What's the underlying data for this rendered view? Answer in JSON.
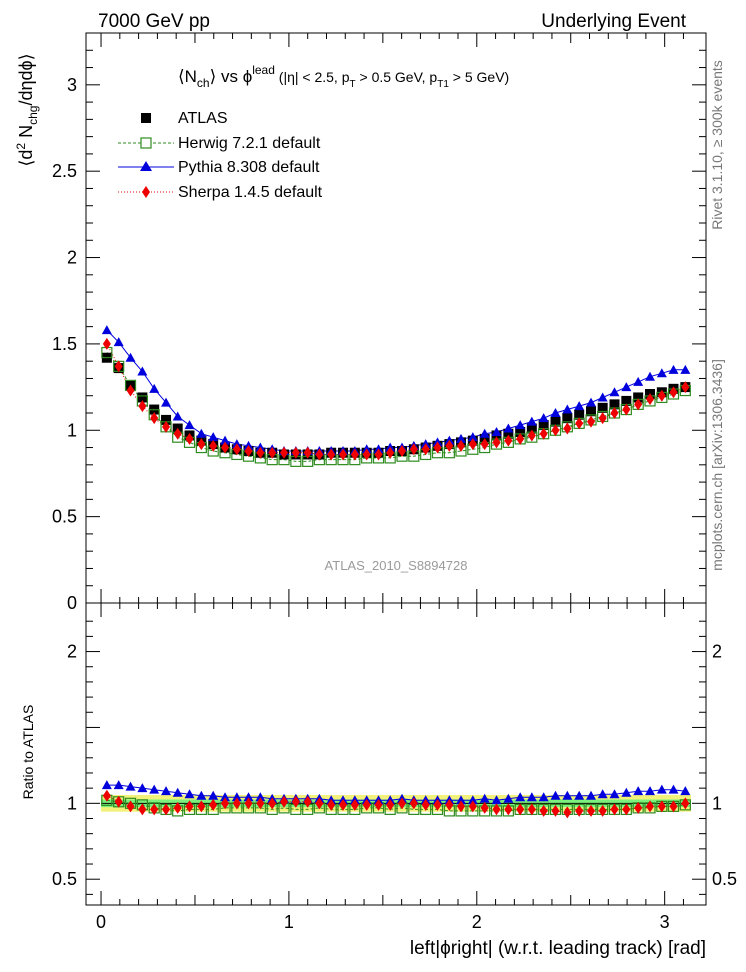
{
  "header": {
    "left": "7000 GeV pp",
    "right": "Underlying Event"
  },
  "side_labels": {
    "top": "Rivet 3.1.10, ≥ 300k events",
    "bottom": "mcplots.cern.ch [arXiv:1306.3436]"
  },
  "watermark": "ATLAS_2010_S8894728",
  "colors": {
    "atlas": "#000000",
    "herwig": "#2e8b1f",
    "pythia": "#0000dd",
    "sherpa": "#ee0000",
    "band_inner": "#7cf07c",
    "band_outer": "#f2f27a"
  },
  "chart_data": [
    {
      "type": "scatter",
      "title_parts": {
        "a": "⟨N",
        "a_sub": "ch",
        "b": "⟩ vs ϕ",
        "b_sup": "lead",
        "c": " (|η| < 2.5, p",
        "c_sub": "T",
        "d": " > 0.5 GeV, p",
        "d_sub": "T1",
        "e": " > 5 GeV)"
      },
      "ylabel_parts": {
        "a": "⟨d",
        "a_sup": "2",
        "b": " N",
        "b_sub": "chg",
        "c": "/dηdϕ⟩"
      },
      "xlim": [
        -0.08,
        3.22
      ],
      "ylim": [
        0,
        3.3
      ],
      "yticks": [
        "0",
        "0.5",
        "1",
        "1.5",
        "2",
        "2.5",
        "3"
      ],
      "legend_position": "top-left",
      "x": [
        0.031,
        0.094,
        0.157,
        0.22,
        0.283,
        0.346,
        0.408,
        0.471,
        0.534,
        0.597,
        0.66,
        0.723,
        0.785,
        0.848,
        0.911,
        0.974,
        1.037,
        1.1,
        1.162,
        1.225,
        1.288,
        1.351,
        1.414,
        1.477,
        1.539,
        1.602,
        1.665,
        1.728,
        1.791,
        1.854,
        1.916,
        1.979,
        2.042,
        2.105,
        2.168,
        2.231,
        2.293,
        2.356,
        2.419,
        2.482,
        2.545,
        2.608,
        2.67,
        2.733,
        2.796,
        2.859,
        2.922,
        2.985,
        3.047,
        3.11
      ],
      "series": [
        {
          "name": "ATLAS",
          "marker": "square-filled",
          "values": [
            1.42,
            1.36,
            1.26,
            1.19,
            1.12,
            1.06,
            1.01,
            0.97,
            0.94,
            0.92,
            0.9,
            0.89,
            0.88,
            0.87,
            0.87,
            0.86,
            0.86,
            0.86,
            0.86,
            0.87,
            0.87,
            0.87,
            0.87,
            0.87,
            0.88,
            0.88,
            0.89,
            0.9,
            0.91,
            0.92,
            0.93,
            0.94,
            0.95,
            0.97,
            0.98,
            0.99,
            1.01,
            1.03,
            1.05,
            1.07,
            1.09,
            1.11,
            1.13,
            1.15,
            1.17,
            1.19,
            1.21,
            1.22,
            1.24,
            1.25
          ]
        },
        {
          "name": "Herwig 7.2.1 default",
          "marker": "square-open",
          "values": [
            1.45,
            1.37,
            1.26,
            1.17,
            1.09,
            1.02,
            0.96,
            0.93,
            0.9,
            0.88,
            0.87,
            0.86,
            0.85,
            0.84,
            0.83,
            0.83,
            0.82,
            0.82,
            0.83,
            0.83,
            0.83,
            0.83,
            0.84,
            0.84,
            0.84,
            0.85,
            0.85,
            0.86,
            0.87,
            0.87,
            0.88,
            0.89,
            0.9,
            0.92,
            0.93,
            0.95,
            0.96,
            0.98,
            1.0,
            1.02,
            1.04,
            1.06,
            1.08,
            1.1,
            1.12,
            1.15,
            1.17,
            1.19,
            1.21,
            1.23
          ]
        },
        {
          "name": "Pythia 8.308 default",
          "marker": "triangle-filled",
          "values": [
            1.58,
            1.51,
            1.42,
            1.34,
            1.24,
            1.16,
            1.08,
            1.03,
            0.98,
            0.96,
            0.94,
            0.92,
            0.91,
            0.9,
            0.89,
            0.88,
            0.88,
            0.88,
            0.88,
            0.88,
            0.88,
            0.88,
            0.89,
            0.89,
            0.9,
            0.9,
            0.91,
            0.92,
            0.93,
            0.94,
            0.95,
            0.96,
            0.98,
            0.99,
            1.01,
            1.03,
            1.05,
            1.07,
            1.1,
            1.12,
            1.14,
            1.16,
            1.19,
            1.22,
            1.25,
            1.28,
            1.31,
            1.33,
            1.35,
            1.35
          ]
        },
        {
          "name": "Sherpa 1.4.5 default",
          "marker": "diamond-filled",
          "values": [
            1.5,
            1.37,
            1.23,
            1.14,
            1.07,
            1.02,
            0.98,
            0.95,
            0.92,
            0.91,
            0.9,
            0.89,
            0.88,
            0.87,
            0.87,
            0.87,
            0.87,
            0.87,
            0.86,
            0.86,
            0.86,
            0.86,
            0.86,
            0.86,
            0.87,
            0.88,
            0.89,
            0.89,
            0.9,
            0.91,
            0.91,
            0.92,
            0.92,
            0.93,
            0.94,
            0.95,
            0.97,
            0.98,
            1.0,
            1.01,
            1.04,
            1.05,
            1.07,
            1.1,
            1.12,
            1.15,
            1.18,
            1.2,
            1.22,
            1.25
          ]
        }
      ]
    },
    {
      "type": "scatter",
      "ylabel": "Ratio to ATLAS",
      "xlabel": "left|ϕright| (w.r.t. leading track) [rad]",
      "xlim": [
        -0.08,
        3.22
      ],
      "ylim": [
        0.33,
        2.32
      ],
      "xticks": [
        "0",
        "1",
        "2",
        "3"
      ],
      "yticks": [
        "0.5",
        "1",
        "2"
      ],
      "band_inner": 0.025,
      "band_outer": 0.055,
      "series": [
        {
          "name": "Herwig 7.2.1 default",
          "values": [
            1.02,
            1.01,
            1.0,
            0.99,
            0.97,
            0.96,
            0.95,
            0.96,
            0.96,
            0.96,
            0.97,
            0.97,
            0.97,
            0.97,
            0.96,
            0.97,
            0.96,
            0.96,
            0.97,
            0.96,
            0.96,
            0.96,
            0.97,
            0.97,
            0.96,
            0.97,
            0.96,
            0.96,
            0.96,
            0.95,
            0.95,
            0.95,
            0.95,
            0.95,
            0.95,
            0.96,
            0.96,
            0.96,
            0.96,
            0.96,
            0.96,
            0.96,
            0.96,
            0.96,
            0.96,
            0.97,
            0.97,
            0.98,
            0.98,
            0.99
          ]
        },
        {
          "name": "Pythia 8.308 default",
          "values": [
            1.12,
            1.12,
            1.11,
            1.1,
            1.09,
            1.08,
            1.07,
            1.06,
            1.05,
            1.05,
            1.04,
            1.04,
            1.04,
            1.04,
            1.03,
            1.03,
            1.03,
            1.03,
            1.03,
            1.02,
            1.02,
            1.02,
            1.02,
            1.02,
            1.02,
            1.03,
            1.02,
            1.02,
            1.02,
            1.02,
            1.02,
            1.02,
            1.03,
            1.02,
            1.03,
            1.04,
            1.04,
            1.04,
            1.05,
            1.05,
            1.05,
            1.05,
            1.06,
            1.06,
            1.07,
            1.08,
            1.08,
            1.09,
            1.09,
            1.08
          ]
        },
        {
          "name": "Sherpa 1.4.5 default",
          "values": [
            1.05,
            1.01,
            0.98,
            0.96,
            0.96,
            0.96,
            0.97,
            0.98,
            0.98,
            0.99,
            1.0,
            1.0,
            1.0,
            1.0,
            1.0,
            1.01,
            1.01,
            1.01,
            1.0,
            0.99,
            0.99,
            0.99,
            0.99,
            0.99,
            0.99,
            1.0,
            1.0,
            0.99,
            0.99,
            0.99,
            0.98,
            0.98,
            0.97,
            0.96,
            0.96,
            0.96,
            0.96,
            0.95,
            0.95,
            0.94,
            0.95,
            0.95,
            0.95,
            0.96,
            0.96,
            0.97,
            0.98,
            0.98,
            0.98,
            1.0
          ]
        }
      ]
    }
  ]
}
